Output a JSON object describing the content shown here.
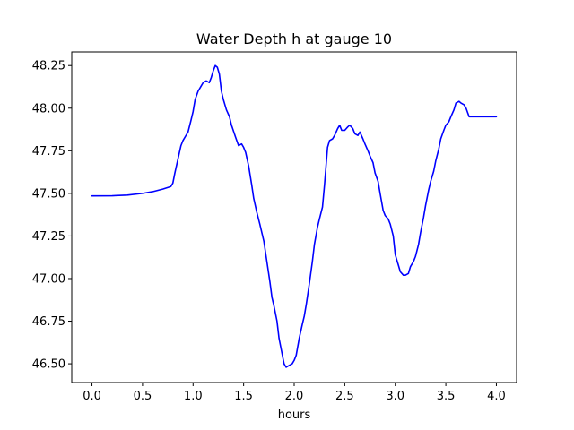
{
  "chart_data": {
    "type": "line",
    "title": "Water Depth h at gauge 10",
    "xlabel": "hours",
    "ylabel": "",
    "xlim": [
      -0.2,
      4.2
    ],
    "ylim": [
      46.39,
      48.33
    ],
    "grid": false,
    "xticks": [
      0.0,
      0.5,
      1.0,
      1.5,
      2.0,
      2.5,
      3.0,
      3.5,
      4.0
    ],
    "xtick_labels": [
      "0.0",
      "0.5",
      "1.0",
      "1.5",
      "2.0",
      "2.5",
      "3.0",
      "3.5",
      "4.0"
    ],
    "yticks": [
      46.5,
      46.75,
      47.0,
      47.25,
      47.5,
      47.75,
      48.0,
      48.25
    ],
    "ytick_labels": [
      "46.50",
      "46.75",
      "47.00",
      "47.25",
      "47.50",
      "47.75",
      "48.00",
      "48.25"
    ],
    "series": [
      {
        "color": "#0000ff",
        "x": [
          0.0,
          0.2,
          0.35,
          0.5,
          0.6,
          0.7,
          0.78,
          0.8,
          0.82,
          0.85,
          0.88,
          0.9,
          0.92,
          0.95,
          0.98,
          1.0,
          1.02,
          1.05,
          1.08,
          1.1,
          1.13,
          1.16,
          1.18,
          1.2,
          1.22,
          1.24,
          1.26,
          1.28,
          1.3,
          1.33,
          1.36,
          1.38,
          1.42,
          1.45,
          1.48,
          1.5,
          1.52,
          1.55,
          1.58,
          1.6,
          1.63,
          1.66,
          1.7,
          1.73,
          1.76,
          1.78,
          1.8,
          1.83,
          1.85,
          1.88,
          1.9,
          1.92,
          1.95,
          1.98,
          2.0,
          2.02,
          2.05,
          2.08,
          2.1,
          2.12,
          2.15,
          2.18,
          2.2,
          2.23,
          2.25,
          2.28,
          2.3,
          2.33,
          2.35,
          2.38,
          2.4,
          2.43,
          2.45,
          2.47,
          2.5,
          2.53,
          2.55,
          2.58,
          2.6,
          2.63,
          2.65,
          2.68,
          2.7,
          2.73,
          2.75,
          2.78,
          2.8,
          2.83,
          2.85,
          2.88,
          2.9,
          2.93,
          2.95,
          2.98,
          3.0,
          3.03,
          3.05,
          3.08,
          3.1,
          3.13,
          3.15,
          3.18,
          3.2,
          3.23,
          3.25,
          3.28,
          3.3,
          3.33,
          3.35,
          3.38,
          3.4,
          3.43,
          3.45,
          3.48,
          3.5,
          3.53,
          3.55,
          3.58,
          3.6,
          3.63,
          3.65,
          3.68,
          3.7,
          3.73,
          3.75,
          3.78,
          3.8,
          3.83,
          3.85,
          3.87,
          3.9,
          3.92,
          3.95,
          3.98,
          4.0
        ],
        "y": [
          47.485,
          47.486,
          47.49,
          47.5,
          47.51,
          47.525,
          47.54,
          47.56,
          47.62,
          47.7,
          47.78,
          47.81,
          47.83,
          47.86,
          47.93,
          47.98,
          48.05,
          48.1,
          48.13,
          48.15,
          48.16,
          48.15,
          48.18,
          48.22,
          48.25,
          48.24,
          48.2,
          48.1,
          48.05,
          47.99,
          47.95,
          47.9,
          47.83,
          47.78,
          47.79,
          47.77,
          47.74,
          47.66,
          47.55,
          47.47,
          47.39,
          47.32,
          47.22,
          47.1,
          46.98,
          46.89,
          46.84,
          46.75,
          46.65,
          46.56,
          46.5,
          46.48,
          46.49,
          46.5,
          46.52,
          46.55,
          46.65,
          46.73,
          46.78,
          46.85,
          46.97,
          47.1,
          47.2,
          47.3,
          47.35,
          47.42,
          47.55,
          47.77,
          47.81,
          47.82,
          47.84,
          47.88,
          47.9,
          47.87,
          47.87,
          47.89,
          47.9,
          47.88,
          47.85,
          47.84,
          47.86,
          47.82,
          47.79,
          47.75,
          47.72,
          47.68,
          47.62,
          47.57,
          47.5,
          47.4,
          47.37,
          47.35,
          47.32,
          47.25,
          47.14,
          47.08,
          47.04,
          47.02,
          47.02,
          47.03,
          47.07,
          47.1,
          47.13,
          47.2,
          47.27,
          47.36,
          47.43,
          47.52,
          47.57,
          47.63,
          47.69,
          47.76,
          47.82,
          47.87,
          47.9,
          47.92,
          47.95,
          47.99,
          48.03,
          48.04,
          48.03,
          48.02,
          48.0,
          47.95,
          47.95,
          47.95,
          47.95,
          47.95,
          47.95,
          47.95,
          47.95,
          47.95,
          47.95,
          47.95,
          47.95
        ]
      }
    ]
  }
}
